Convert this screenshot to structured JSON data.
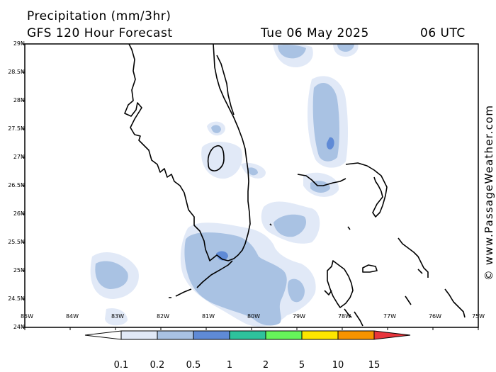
{
  "header": {
    "line1": "Precipitation (mm/3hr)",
    "line2": "GFS 120 Hour Forecast",
    "date": "Tue 06 May 2025",
    "time": "06 UTC"
  },
  "credit": "© www.PassageWeather.com",
  "axes": {
    "lat_labels": [
      "29N",
      "28.5N",
      "28N",
      "27.5N",
      "27N",
      "26.5N",
      "26N",
      "25.5N",
      "25N",
      "24.5N",
      "24N"
    ],
    "lon_labels": [
      "85W",
      "84W",
      "83W",
      "82W",
      "81W",
      "80W",
      "79W",
      "78W",
      "77W",
      "76W",
      "75W"
    ]
  },
  "legend": {
    "labels": [
      "0.1",
      "0.2",
      "0.5",
      "1",
      "2",
      "5",
      "10",
      "15"
    ],
    "colors": [
      "#ffffff",
      "#e1e9f7",
      "#a9c2e3",
      "#5f8ad6",
      "#2ec29c",
      "#66f45a",
      "#fde600",
      "#f79300",
      "#e8353c"
    ]
  },
  "precip_colors": {
    "light": "#e1e9f7",
    "medium": "#a9c2e3",
    "heavy": "#5f8ad6"
  }
}
